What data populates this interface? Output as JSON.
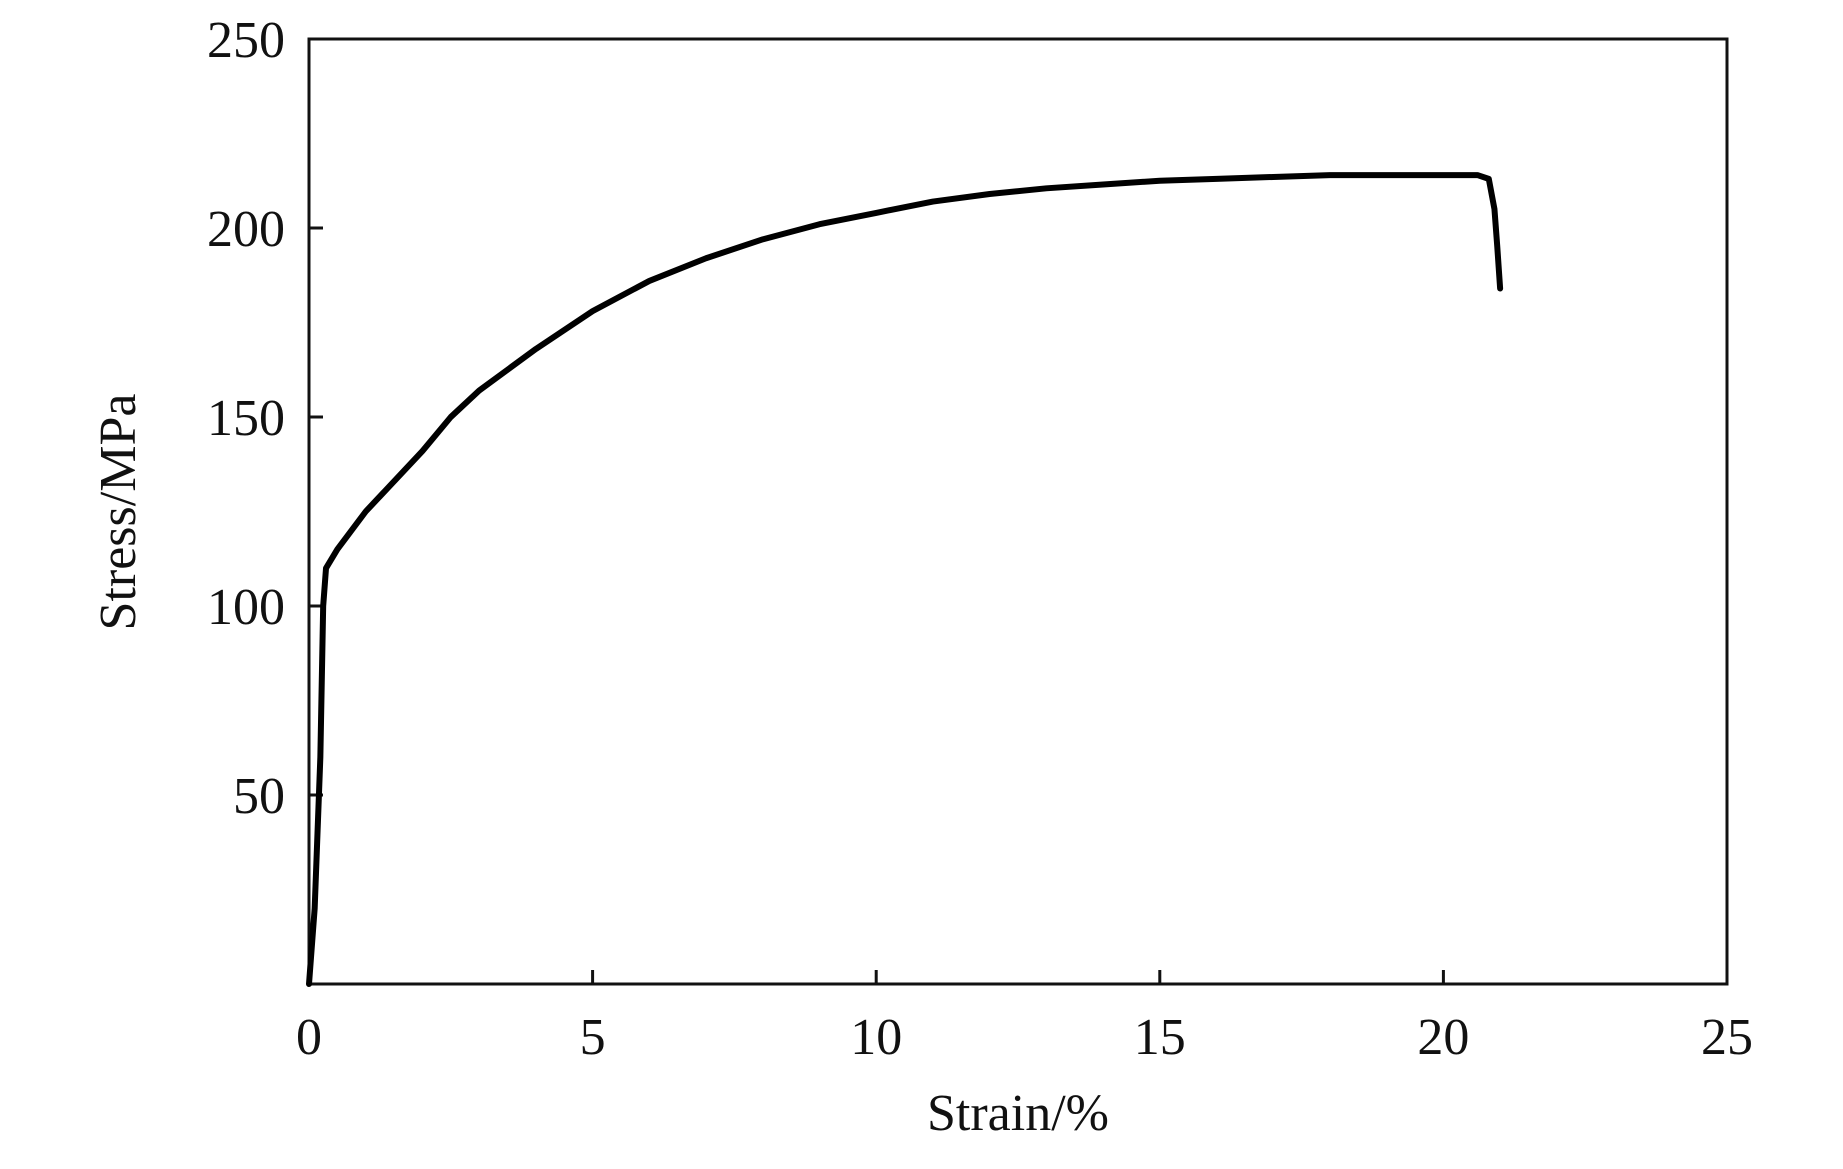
{
  "chart_data": {
    "type": "line",
    "x_label": "Strain/%",
    "y_label": "Stress/MPa",
    "xlim": [
      0,
      25
    ],
    "xticks": [
      0,
      5,
      10,
      15,
      20,
      25
    ],
    "ylim": [
      0,
      250
    ],
    "yticks": [
      50,
      100,
      150,
      200,
      250
    ],
    "color": "#000000",
    "x": [
      0,
      0.1,
      0.2,
      0.25,
      0.3,
      0.5,
      1,
      2,
      2.5,
      3,
      4,
      5,
      6,
      7,
      8,
      9,
      10,
      11,
      12,
      13,
      14,
      15,
      16,
      17,
      18,
      19,
      20,
      20.6,
      20.8,
      20.9,
      20.95,
      21
    ],
    "values": [
      0,
      20,
      60,
      100,
      110,
      115,
      125,
      141,
      150,
      157,
      168,
      178,
      186,
      192,
      197,
      201,
      204,
      207,
      209,
      210.5,
      211.5,
      212.5,
      213,
      213.5,
      214,
      214,
      214,
      214,
      213,
      205,
      195,
      184
    ]
  }
}
